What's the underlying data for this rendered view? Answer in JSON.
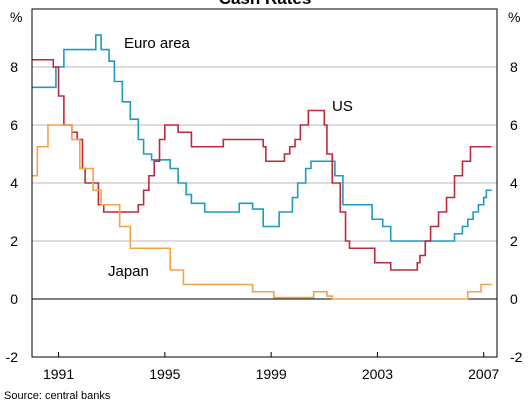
{
  "chart_data": {
    "type": "line",
    "step": true,
    "title": "Cash Rates",
    "y_unit_left": "%",
    "y_unit_right": "%",
    "source": "Source: central banks",
    "xlim": [
      1990,
      2007.5
    ],
    "xticks": [
      1991,
      1995,
      1999,
      2003,
      2007
    ],
    "ylim": [
      -2,
      10
    ],
    "yticks": [
      -2,
      0,
      2,
      4,
      6,
      8
    ],
    "grid": true,
    "series": [
      {
        "name": "Euro area",
        "color": "#1e9bbf",
        "x": [
          1990,
          1990.9,
          1991.2,
          1992.4,
          1992.6,
          1992.9,
          1993.1,
          1993.4,
          1993.7,
          1994,
          1994.2,
          1994.5,
          1995.2,
          1995.5,
          1995.8,
          1996,
          1996.5,
          1997.8,
          1998.3,
          1998.7,
          1999.3,
          1999.8,
          2000,
          2000.3,
          2000.5,
          2001.4,
          2001.7,
          2002.8,
          2003.2,
          2003.5,
          2005.9,
          2006.2,
          2006.4,
          2006.6,
          2006.8,
          2007,
          2007.1,
          2007.3
        ],
        "values": [
          7.3,
          8,
          8.6,
          9.1,
          8.6,
          8.2,
          7.5,
          6.8,
          6.2,
          5.5,
          5,
          4.8,
          4.5,
          4,
          3.6,
          3.3,
          3,
          3.3,
          3.1,
          2.5,
          3,
          3.5,
          4,
          4.5,
          4.75,
          4.25,
          3.25,
          2.75,
          2.5,
          2,
          2.25,
          2.5,
          2.75,
          3,
          3.25,
          3.5,
          3.75,
          3.75
        ]
      },
      {
        "name": "US",
        "color": "#c0283a",
        "x": [
          1990,
          1990.8,
          1991,
          1991.2,
          1991.5,
          1991.7,
          1991.9,
          1992,
          1992.5,
          1992.7,
          1994,
          1994.2,
          1994.4,
          1994.6,
          1994.8,
          1995,
          1995.5,
          1996,
          1997.2,
          1998.7,
          1998.8,
          1999.5,
          1999.7,
          1999.9,
          2000.1,
          2000.4,
          2001,
          2001.1,
          2001.3,
          2001.6,
          2001.8,
          2001.95,
          2002.9,
          2003.5,
          2004.5,
          2004.6,
          2004.8,
          2005,
          2005.3,
          2005.6,
          2005.9,
          2006.2,
          2006.5,
          2007.3
        ],
        "values": [
          8.25,
          8,
          7,
          6,
          5.75,
          5.5,
          4.5,
          4,
          3.25,
          3,
          3.25,
          3.75,
          4.25,
          4.75,
          5.5,
          6,
          5.75,
          5.25,
          5.5,
          5.25,
          4.75,
          5,
          5.25,
          5.5,
          6,
          6.5,
          6,
          5,
          4,
          3,
          2,
          1.75,
          1.25,
          1,
          1.25,
          1.5,
          2,
          2.5,
          3,
          3.5,
          4.25,
          4.75,
          5.25,
          5.25
        ]
      },
      {
        "name": "Japan",
        "color": "#f5a04a",
        "x": [
          1990,
          1990.2,
          1990.6,
          1991.5,
          1991.8,
          1992.3,
          1992.6,
          1993.3,
          1993.7,
          1995.2,
          1995.7,
          1998.3,
          1999.1,
          2000.6,
          2001.1,
          2001.3,
          2006.4,
          2006.9,
          2007.3
        ],
        "values": [
          4.25,
          5.25,
          6,
          5.5,
          4.5,
          3.75,
          3.25,
          2.5,
          1.75,
          1,
          0.5,
          0.25,
          0.05,
          0.25,
          0.1,
          0,
          0.25,
          0.5,
          0.5
        ]
      }
    ]
  }
}
